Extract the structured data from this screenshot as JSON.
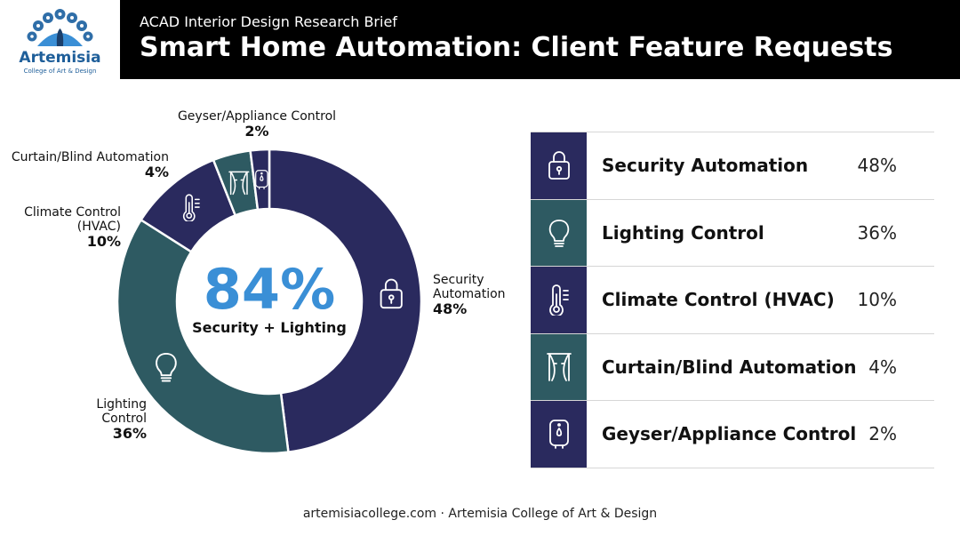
{
  "brand": {
    "name": "Artemisia",
    "tagline": "College of Art & Design",
    "colors": {
      "navy": "#2a2a5e",
      "teal": "#2e5a62",
      "blue": "#3a8fd6"
    }
  },
  "header": {
    "kicker": "ACAD Interior Design Research Brief",
    "title": "Smart Home Automation: Client Feature Requests"
  },
  "chart_data": {
    "type": "pie",
    "style": "donut",
    "categories": [
      "Security Automation",
      "Lighting Control",
      "Climate Control (HVAC)",
      "Curtain/Blind Automation",
      "Geyser/Appliance Control"
    ],
    "values": [
      48,
      36,
      10,
      4,
      2
    ],
    "unit": "%",
    "colors": [
      "#2a2a5e",
      "#2e5a62",
      "#2a2a5e",
      "#2e5a62",
      "#2a2a5e"
    ],
    "icons": [
      "lock-icon",
      "lightbulb-icon",
      "thermometer-icon",
      "curtain-icon",
      "water-heater-icon"
    ],
    "slice_labels": [
      {
        "lines": [
          "Security",
          "Automation"
        ],
        "value": "48%"
      },
      {
        "lines": [
          "Lighting",
          "Control"
        ],
        "value": "36%"
      },
      {
        "lines": [
          "Climate Control",
          "(HVAC)"
        ],
        "value": "10%"
      },
      {
        "lines": [
          "Curtain/Blind Automation"
        ],
        "value": "4%"
      },
      {
        "lines": [
          "Geyser/Appliance Control"
        ],
        "value": "2%"
      }
    ],
    "center_value": "84%",
    "center_label": "Security + Lighting"
  },
  "legend": {
    "rows": [
      {
        "name": "Security Automation",
        "value": "48%",
        "icon": "lock-icon",
        "color": "#2a2a5e"
      },
      {
        "name": "Lighting Control",
        "value": "36%",
        "icon": "lightbulb-icon",
        "color": "#2e5a62"
      },
      {
        "name": "Climate Control (HVAC)",
        "value": "10%",
        "icon": "thermometer-icon",
        "color": "#2a2a5e"
      },
      {
        "name": "Curtain/Blind Automation",
        "value": "4%",
        "icon": "curtain-icon",
        "color": "#2e5a62"
      },
      {
        "name": "Geyser/Appliance Control",
        "value": "2%",
        "icon": "water-heater-icon",
        "color": "#2a2a5e"
      }
    ]
  },
  "footer": {
    "text": "artemisiacollege.com · Artemisia College of Art & Design"
  }
}
